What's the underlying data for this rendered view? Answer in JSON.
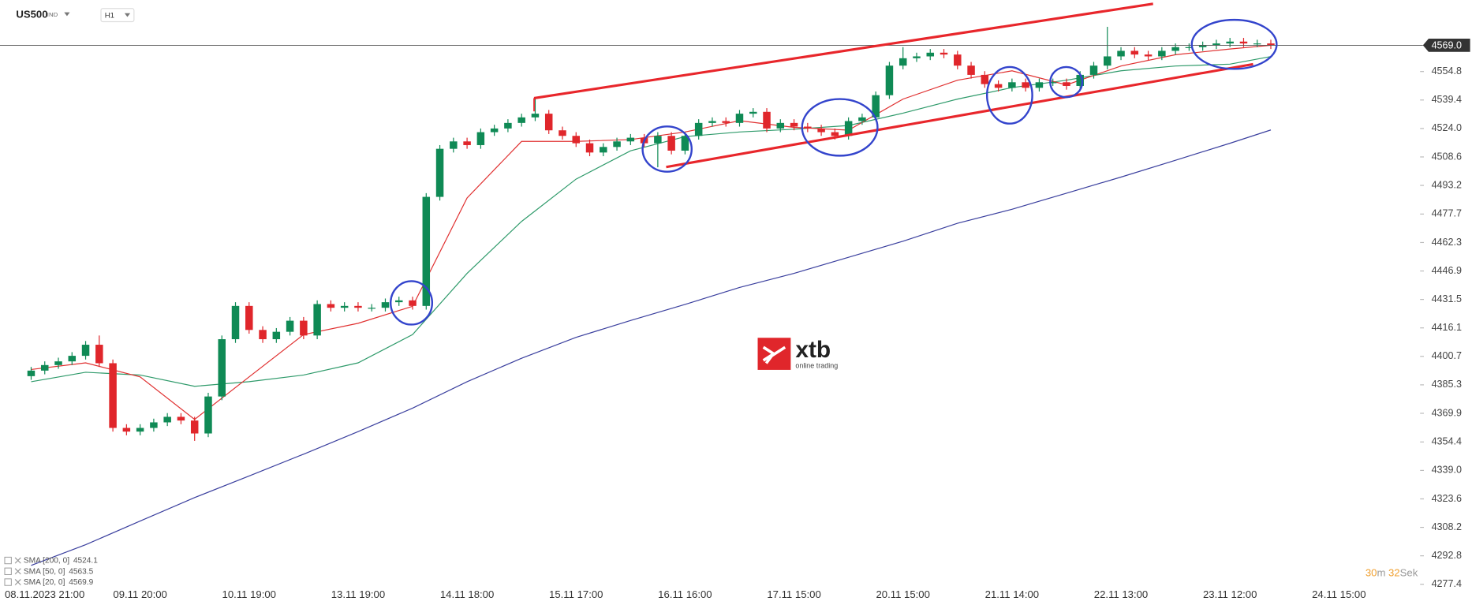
{
  "header": {
    "symbol": "US500",
    "market": "IND",
    "interval": "H1"
  },
  "timer": {
    "minutes": "30",
    "minutes_unit": "m",
    "seconds": "32",
    "seconds_unit": "Sek"
  },
  "watermark": {
    "name": "xtb",
    "tagline": "online trading"
  },
  "chart_data": {
    "type": "candlestick",
    "up_color": "#0f8a55",
    "down_color": "#e0262b",
    "categories": [
      "08.11.2023 21:00",
      null,
      null,
      null,
      null,
      null,
      null,
      null,
      "09.11 20:00",
      null,
      null,
      null,
      null,
      null,
      null,
      null,
      "10.11 19:00",
      null,
      null,
      null,
      null,
      null,
      null,
      null,
      "13.11 19:00",
      null,
      null,
      null,
      null,
      null,
      null,
      null,
      "14.11 18:00",
      null,
      null,
      null,
      null,
      null,
      null,
      null,
      "15.11 17:00",
      null,
      null,
      null,
      null,
      null,
      null,
      null,
      "16.11 16:00",
      null,
      null,
      null,
      null,
      null,
      null,
      null,
      "17.11 15:00",
      null,
      null,
      null,
      null,
      null,
      null,
      null,
      "20.11 15:00",
      null,
      null,
      null,
      null,
      null,
      null,
      null,
      "21.11 14:00",
      null,
      null,
      null,
      null,
      null,
      null,
      null,
      "22.11 13:00",
      null,
      null,
      null,
      null,
      null,
      null,
      null,
      "23.11 12:00",
      null,
      null,
      null,
      null,
      null,
      null,
      null,
      "24.11 15:00"
    ],
    "open": [
      4390,
      4393,
      4396,
      4398,
      4401,
      4407,
      4397,
      4362,
      4360,
      4362,
      4365,
      4368,
      4366,
      4359,
      4379,
      4410,
      4428,
      4415,
      4410,
      4414,
      4420,
      4412,
      4429,
      4427,
      4428,
      4427,
      4427,
      4430,
      4431,
      4428,
      4487,
      4513,
      4517,
      4515,
      4522,
      4524,
      4527,
      4530,
      4532,
      4523,
      4520,
      4516,
      4511,
      4514,
      4517,
      4519,
      4516,
      4520,
      4512,
      4520,
      4527,
      4528,
      4527,
      4532,
      4533,
      4524,
      4527,
      4525,
      4524,
      4522,
      4520,
      4528,
      4530,
      4542,
      4558,
      4562,
      4563,
      4565,
      4564,
      4558,
      4553,
      4548,
      4546,
      4549,
      4546,
      4549,
      4549,
      4547,
      4553,
      4558,
      4563,
      4566,
      4564,
      4563,
      4566,
      4568,
      4568,
      4569,
      4570,
      4571,
      4570,
      4570,
      null,
      null,
      null,
      null,
      null
    ],
    "high": [
      4395,
      4398,
      4400,
      4403,
      4409,
      4412,
      4399,
      4364,
      4364,
      4367,
      4370,
      4370,
      4368,
      4381,
      4412,
      4430,
      4430,
      4417,
      4416,
      4422,
      4422,
      4431,
      4431,
      4430,
      4430,
      4429,
      4432,
      4433,
      4433,
      4489,
      4515,
      4519,
      4519,
      4524,
      4526,
      4529,
      4532,
      4540,
      4534,
      4525,
      4522,
      4518,
      4516,
      4519,
      4521,
      4521,
      4522,
      4522,
      4522,
      4529,
      4530,
      4530,
      4534,
      4535,
      4535,
      4529,
      4529,
      4527,
      4526,
      4524,
      4530,
      4532,
      4544,
      4560,
      4568,
      4565,
      4567,
      4567,
      4566,
      4560,
      4555,
      4550,
      4551,
      4551,
      4551,
      4551,
      4551,
      4555,
      4560,
      4579,
      4568,
      4568,
      4566,
      4568,
      4570,
      4570,
      4571,
      4572,
      4573,
      4573,
      4572,
      4572,
      null,
      null,
      null,
      null,
      null
    ],
    "low": [
      4388,
      4391,
      4394,
      4396,
      4399,
      4395,
      4360,
      4358,
      4358,
      4360,
      4363,
      4364,
      4355,
      4357,
      4377,
      4408,
      4413,
      4408,
      4408,
      4412,
      4410,
      4410,
      4425,
      4425,
      4425,
      4425,
      4425,
      4428,
      4426,
      4426,
      4485,
      4511,
      4513,
      4513,
      4520,
      4522,
      4525,
      4528,
      4521,
      4518,
      4514,
      4509,
      4509,
      4512,
      4515,
      4514,
      4503,
      4510,
      4510,
      4518,
      4525,
      4525,
      4525,
      4530,
      4522,
      4522,
      4523,
      4522,
      4520,
      4518,
      4518,
      4526,
      4528,
      4540,
      4556,
      4560,
      4561,
      4562,
      4556,
      4551,
      4546,
      4544,
      4544,
      4544,
      4544,
      4547,
      4545,
      4545,
      4551,
      4556,
      4561,
      4562,
      4561,
      4561,
      4564,
      4566,
      4566,
      4567,
      4568,
      4568,
      4568,
      4567,
      null,
      null,
      null,
      null,
      null
    ],
    "close": [
      4393,
      4396,
      4398,
      4401,
      4407,
      4397,
      4362,
      4360,
      4362,
      4365,
      4368,
      4366,
      4359,
      4379,
      4410,
      4428,
      4415,
      4410,
      4414,
      4420,
      4412,
      4429,
      4427,
      4428,
      4427,
      4427,
      4430,
      4431,
      4428,
      4487,
      4513,
      4517,
      4515,
      4522,
      4524,
      4527,
      4530,
      4532,
      4523,
      4520,
      4516,
      4511,
      4514,
      4517,
      4519,
      4516,
      4520,
      4512,
      4520,
      4527,
      4528,
      4527,
      4532,
      4533,
      4524,
      4527,
      4525,
      4524,
      4522,
      4520,
      4528,
      4530,
      4542,
      4558,
      4562,
      4563,
      4565,
      4564,
      4558,
      4553,
      4548,
      4546,
      4549,
      4546,
      4549,
      4549,
      4547,
      4553,
      4558,
      4563,
      4566,
      4564,
      4563,
      4566,
      4568,
      4568,
      4569,
      4570,
      4571,
      4570,
      4570,
      4569,
      null,
      null,
      null,
      null,
      null
    ],
    "series": [
      {
        "name": "SMA [200, 0]",
        "last_value": 4524.1,
        "color": "#3a3f9e",
        "x": [
          0,
          4,
          8,
          12,
          16,
          20,
          24,
          28,
          32,
          36,
          40,
          44,
          48,
          52,
          56,
          60,
          64,
          68,
          72,
          76,
          80,
          84,
          88,
          91
        ],
        "values": [
          4287.6,
          4298.8,
          4311.6,
          4324.3,
          4336.0,
          4347.8,
          4360.0,
          4372.7,
          4387.0,
          4399.7,
          4411.0,
          4420.1,
          4428.8,
          4438.0,
          4445.6,
          4454.3,
          4463.0,
          4472.7,
          4480.3,
          4489.0,
          4497.7,
          4506.8,
          4516.0,
          4523.2
        ]
      },
      {
        "name": "SMA [50, 0]",
        "last_value": 4563.5,
        "color": "#2e9a6a",
        "x": [
          0,
          4,
          8,
          12,
          16,
          20,
          24,
          28,
          32,
          36,
          40,
          44,
          48,
          52,
          56,
          60,
          64,
          68,
          72,
          76,
          80,
          84,
          88,
          91
        ],
        "values": [
          4387.0,
          4392.1,
          4390.6,
          4384.5,
          4387.0,
          4390.6,
          4397.2,
          4412.5,
          4445.6,
          4473.7,
          4496.6,
          4511.9,
          4519.6,
          4522.1,
          4523.6,
          4525.6,
          4532.3,
          4539.9,
          4546.1,
          4550.1,
          4555.2,
          4557.8,
          4558.8,
          4562.9
        ]
      },
      {
        "name": "SMA [20, 0]",
        "last_value": 4569.9,
        "color": "#e03030",
        "x": [
          0,
          4,
          8,
          12,
          16,
          20,
          24,
          28,
          32,
          36,
          40,
          44,
          48,
          52,
          56,
          60,
          64,
          68,
          72,
          76,
          80,
          84,
          88,
          91
        ],
        "values": [
          4393.6,
          4397.2,
          4389.6,
          4366.6,
          4389.6,
          4412.5,
          4418.6,
          4427.8,
          4486.4,
          4517.0,
          4517.0,
          4518.0,
          4522.1,
          4528.2,
          4524.6,
          4523.1,
          4539.9,
          4550.1,
          4555.2,
          4547.6,
          4557.8,
          4563.9,
          4567.0,
          4569.0
        ]
      }
    ],
    "current_price": {
      "value": 4569,
      "label": "4569.0"
    },
    "ylim": [
      4276,
      4593.5
    ],
    "yticks": [
      4554.8,
      4539.4,
      {
        "value": 4524,
        "label": "4524.0"
      },
      4508.6,
      4493.2,
      4477.7,
      4462.3,
      4446.9,
      4431.5,
      4416.1,
      4400.7,
      4385.3,
      4369.9,
      4354.4,
      {
        "value": 4339,
        "label": "4339.0"
      },
      4323.6,
      4308.2,
      4292.8,
      4277.4
    ]
  }
}
